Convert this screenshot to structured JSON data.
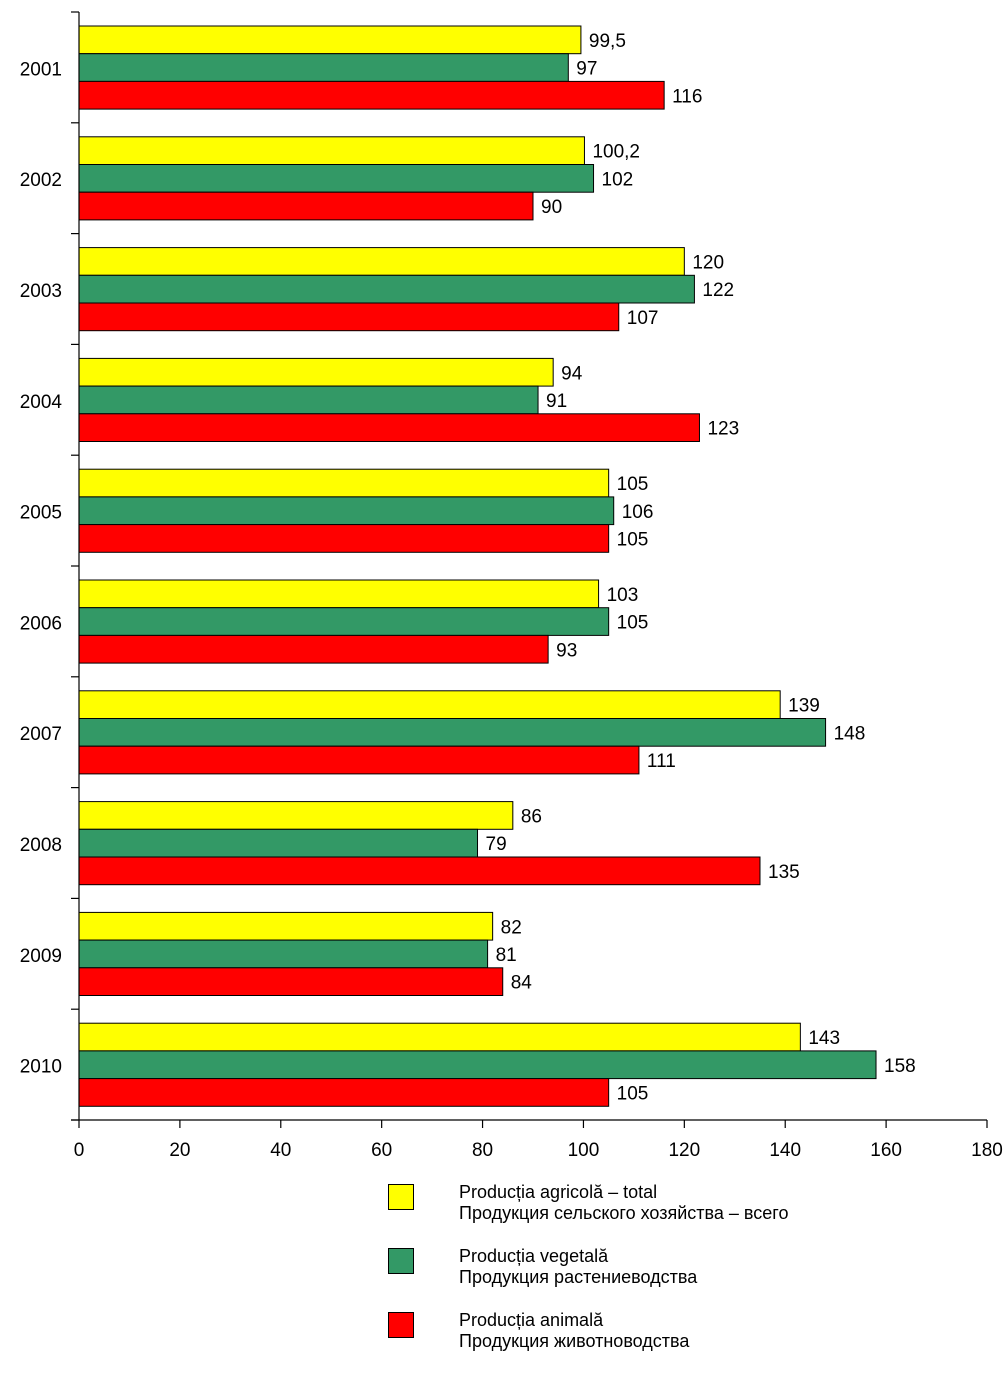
{
  "chart_data": {
    "type": "bar",
    "orientation": "horizontal",
    "categories": [
      "2001",
      "2002",
      "2003",
      "2004",
      "2005",
      "2006",
      "2007",
      "2008",
      "2009",
      "2010"
    ],
    "series": [
      {
        "name": "Producția agricolă – total",
        "name_ru": "Продукция сельского хозяйства – всего",
        "color": "#ffff00",
        "values": [
          99.5,
          100.2,
          120,
          94,
          105,
          103,
          139,
          86,
          82,
          143
        ],
        "labels": [
          "99,5",
          "100,2",
          "120",
          "94",
          "105",
          "103",
          "139",
          "86",
          "82",
          "143"
        ]
      },
      {
        "name": "Producția vegetală",
        "name_ru": "Продукция растениеводства",
        "color": "#339966",
        "values": [
          97,
          102,
          122,
          91,
          106,
          105,
          148,
          79,
          81,
          158
        ],
        "labels": [
          "97",
          "102",
          "122",
          "91",
          "106",
          "105",
          "148",
          "79",
          "81",
          "158"
        ]
      },
      {
        "name": "Producția animală",
        "name_ru": "Продукция животноводства",
        "color": "#ff0000",
        "values": [
          116,
          90,
          107,
          123,
          105,
          93,
          111,
          135,
          84,
          105
        ],
        "labels": [
          "116",
          "90",
          "107",
          "123",
          "105",
          "93",
          "111",
          "135",
          "84",
          "105"
        ]
      }
    ],
    "xlim": [
      0,
      180
    ],
    "xticks": [
      "0",
      "20",
      "40",
      "60",
      "80",
      "100",
      "120",
      "140",
      "160",
      "180"
    ],
    "grid": false,
    "legend_position": "bottom"
  }
}
